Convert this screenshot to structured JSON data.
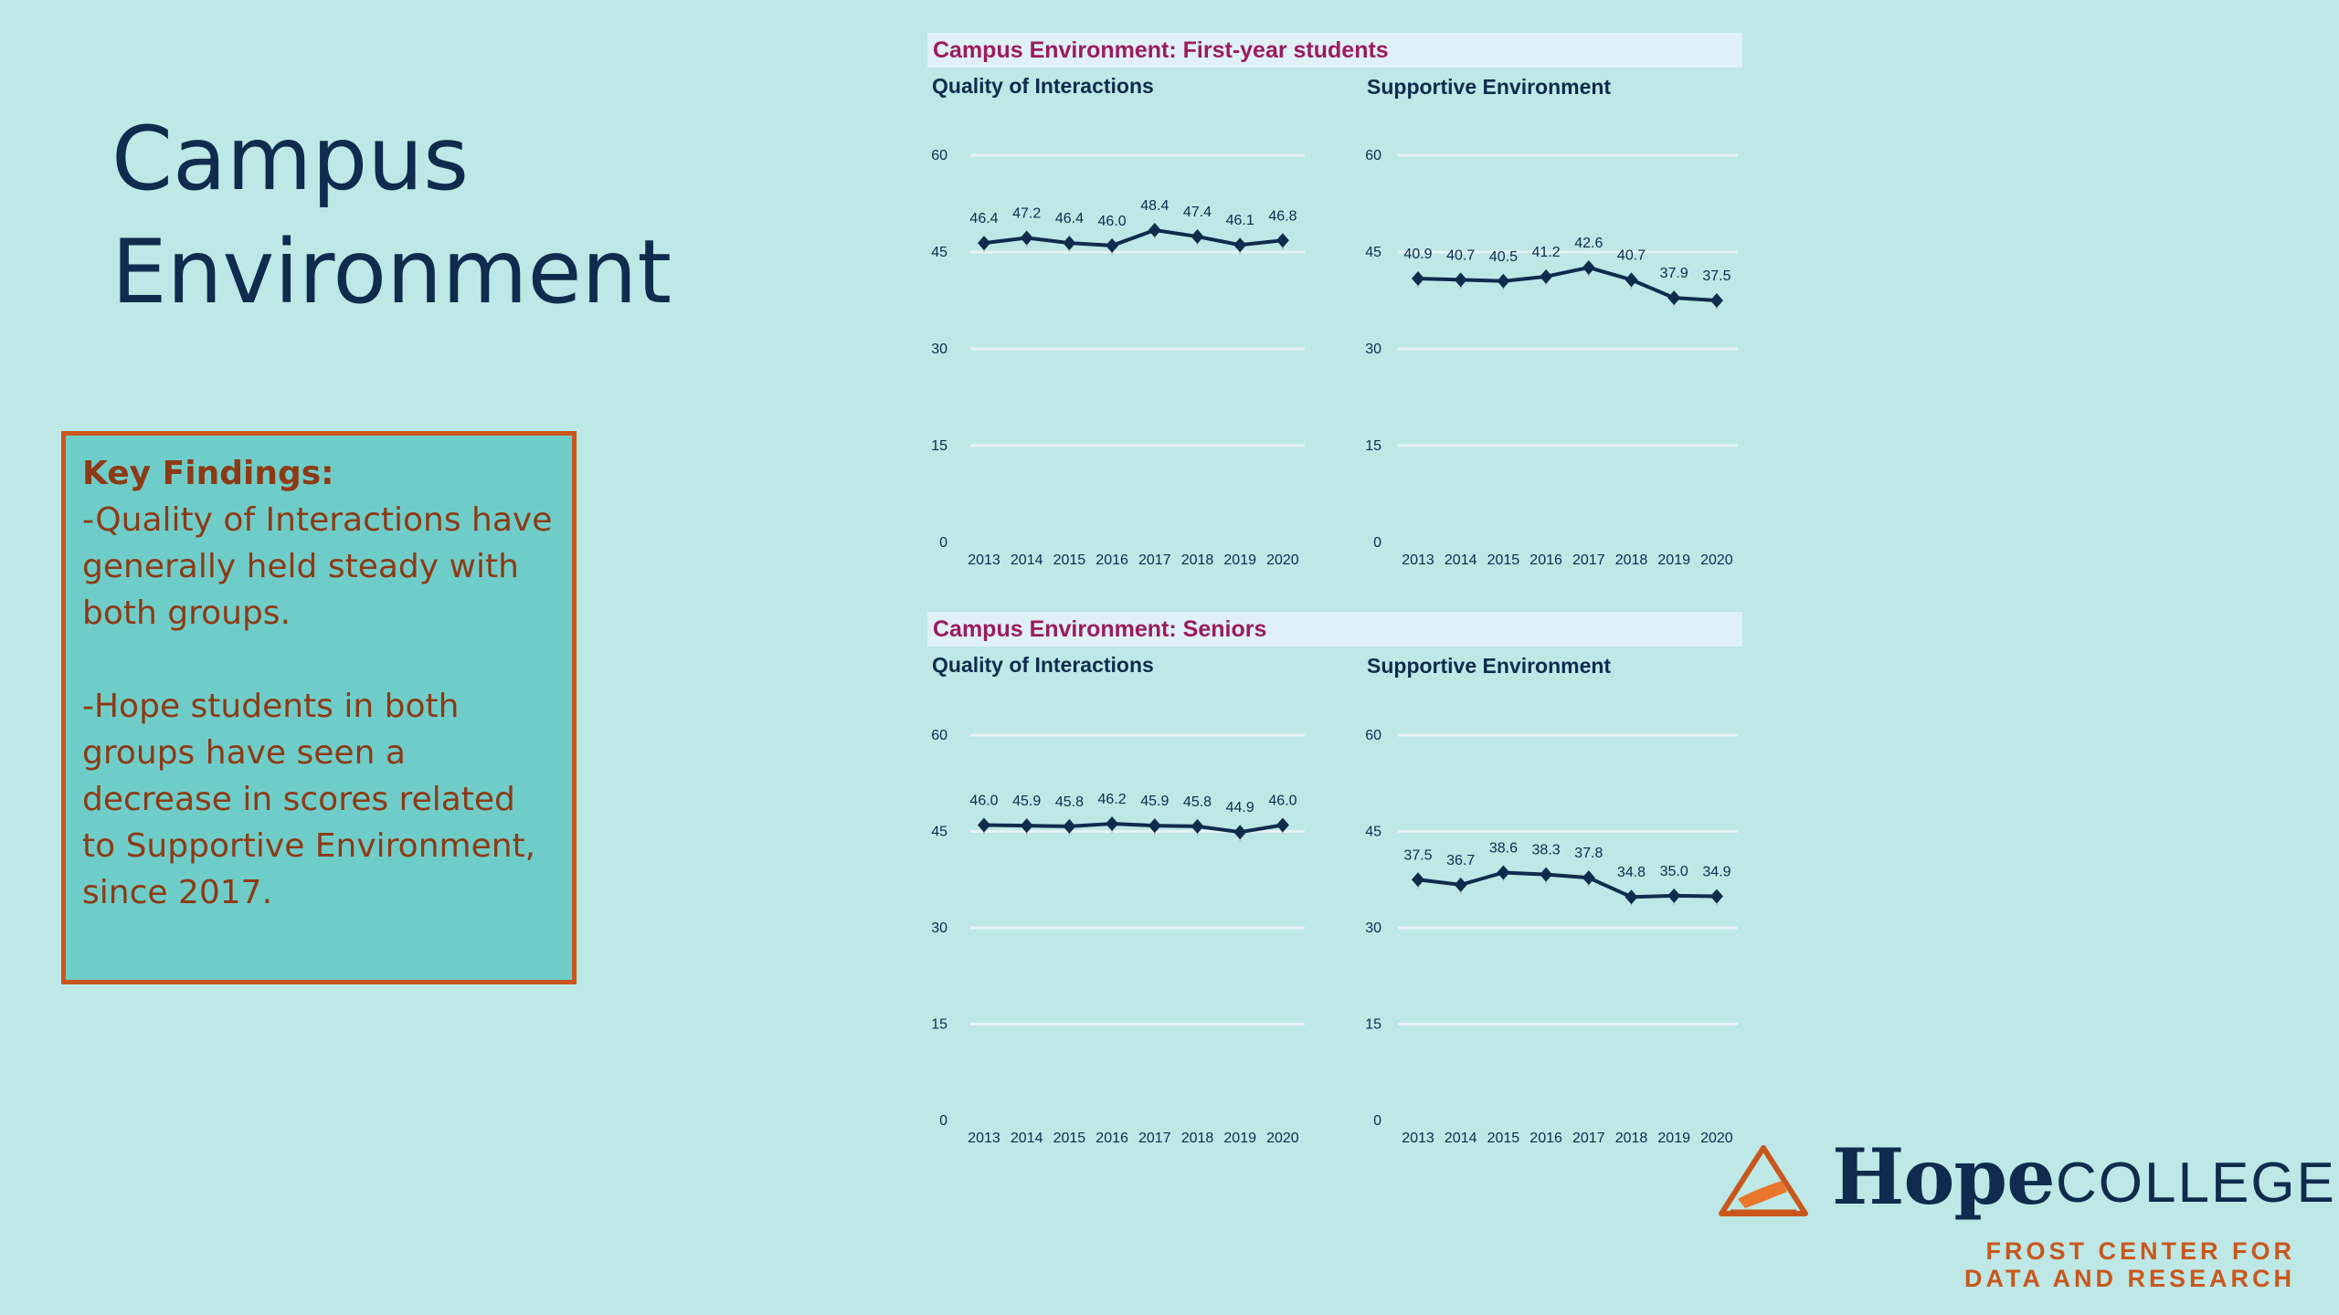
{
  "slide": {
    "title_line1": "Campus",
    "title_line2": "Environment"
  },
  "key_findings": {
    "heading": "Key Findings:",
    "point1": "-Quality of Interactions have generally held steady with both groups.",
    "point2": "-Hope students in both groups have seen a decrease in scores related to Supportive Environment, since 2017."
  },
  "sections": [
    {
      "title": "Campus Environment: First-year students"
    },
    {
      "title": "Campus Environment: Seniors"
    }
  ],
  "logo": {
    "word": "Hope",
    "college": "COLLEGE",
    "subtitle_line1": "FROST CENTER FOR",
    "subtitle_line2": "DATA AND RESEARCH",
    "icon": "anchor-icon"
  },
  "colors": {
    "line": "#0f2b4d",
    "grid": "#e6f2f4",
    "band_text": "#9b1b5e",
    "accent": "#c9571d"
  },
  "chart_data": [
    {
      "type": "line",
      "title": "Quality of Interactions",
      "categories": [
        "2013",
        "2014",
        "2015",
        "2016",
        "2017",
        "2018",
        "2019",
        "2020"
      ],
      "values": [
        46.4,
        47.2,
        46.4,
        46.0,
        48.4,
        47.4,
        46.1,
        46.8
      ],
      "labels": [
        "46.4",
        "47.2",
        "46.4",
        "46.0",
        "48.4",
        "47.4",
        "46.1",
        "46.8"
      ],
      "yticks": [
        "0",
        "15",
        "30",
        "45",
        "60"
      ],
      "ylim": [
        0,
        60
      ],
      "grid": true
    },
    {
      "type": "line",
      "title": "Supportive Environment",
      "categories": [
        "2013",
        "2014",
        "2015",
        "2016",
        "2017",
        "2018",
        "2019",
        "2020"
      ],
      "values": [
        40.9,
        40.7,
        40.5,
        41.2,
        42.6,
        40.7,
        37.9,
        37.5
      ],
      "labels": [
        "40.9",
        "40.7",
        "40.5",
        "41.2",
        "42.6",
        "40.7",
        "37.9",
        "37.5"
      ],
      "yticks": [
        "0",
        "15",
        "30",
        "45",
        "60"
      ],
      "ylim": [
        0,
        60
      ],
      "grid": true
    },
    {
      "type": "line",
      "title": "Quality of Interactions",
      "categories": [
        "2013",
        "2014",
        "2015",
        "2016",
        "2017",
        "2018",
        "2019",
        "2020"
      ],
      "values": [
        46.0,
        45.9,
        45.8,
        46.2,
        45.9,
        45.8,
        44.9,
        46.0
      ],
      "labels": [
        "46.0",
        "45.9",
        "45.8",
        "46.2",
        "45.9",
        "45.8",
        "44.9",
        "46.0"
      ],
      "yticks": [
        "0",
        "15",
        "30",
        "45",
        "60"
      ],
      "ylim": [
        0,
        60
      ],
      "grid": true
    },
    {
      "type": "line",
      "title": "Supportive Environment",
      "categories": [
        "2013",
        "2014",
        "2015",
        "2016",
        "2017",
        "2018",
        "2019",
        "2020"
      ],
      "values": [
        37.5,
        36.7,
        38.6,
        38.3,
        37.8,
        34.8,
        35.0,
        34.9
      ],
      "labels": [
        "37.5",
        "36.7",
        "38.6",
        "38.3",
        "37.8",
        "34.8",
        "35.0",
        "34.9"
      ],
      "yticks": [
        "0",
        "15",
        "30",
        "45",
        "60"
      ],
      "ylim": [
        0,
        60
      ],
      "grid": true
    }
  ]
}
